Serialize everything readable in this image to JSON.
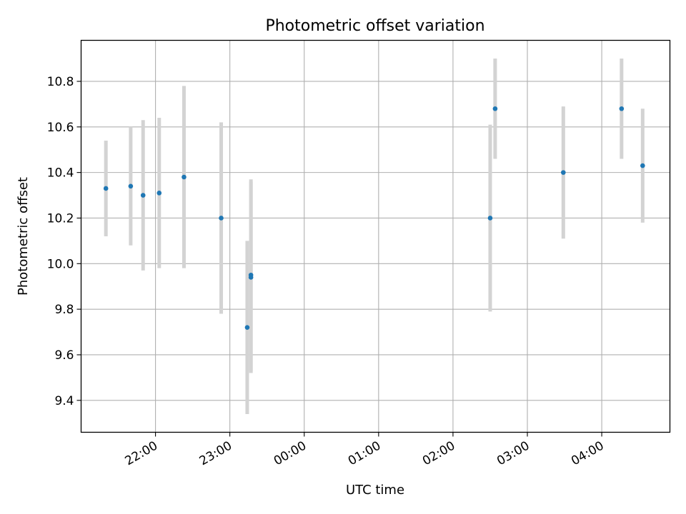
{
  "chart_data": {
    "type": "scatter",
    "title": "Photometric offset variation",
    "xlabel": "UTC time",
    "ylabel": "Photometric offset",
    "x_ticks": [
      "22:00",
      "23:00",
      "00:00",
      "01:00",
      "02:00",
      "03:00",
      "04:00"
    ],
    "x_tick_hours": [
      22,
      23,
      24,
      25,
      26,
      27,
      28
    ],
    "xlim": [
      "21:00",
      "04:55"
    ],
    "y_ticks": [
      "9.4",
      "9.6",
      "9.8",
      "10.0",
      "10.2",
      "10.4",
      "10.6",
      "10.8"
    ],
    "ylim": [
      9.26,
      10.98
    ],
    "grid": true,
    "marker_color": "#1f77b4",
    "errorbar_color": "#d3d3d3",
    "points": [
      {
        "x": "21:20",
        "y": 10.33,
        "err": 0.21
      },
      {
        "x": "21:40",
        "y": 10.34,
        "err": 0.26
      },
      {
        "x": "21:50",
        "y": 10.3,
        "err": 0.33
      },
      {
        "x": "22:03",
        "y": 10.31,
        "err": 0.33
      },
      {
        "x": "22:23",
        "y": 10.38,
        "err": 0.4
      },
      {
        "x": "22:53",
        "y": 10.2,
        "err": 0.42
      },
      {
        "x": "23:14",
        "y": 9.72,
        "err": 0.38
      },
      {
        "x": "23:17",
        "y": 9.95,
        "err": 0.42
      },
      {
        "x": "23:17",
        "y": 9.94,
        "err": 0.42
      },
      {
        "x": "02:30",
        "y": 10.2,
        "err": 0.41
      },
      {
        "x": "02:34",
        "y": 10.68,
        "err": 0.22
      },
      {
        "x": "03:29",
        "y": 10.4,
        "err": 0.29
      },
      {
        "x": "04:16",
        "y": 10.68,
        "err": 0.22
      },
      {
        "x": "04:33",
        "y": 10.43,
        "err": 0.25
      }
    ]
  }
}
